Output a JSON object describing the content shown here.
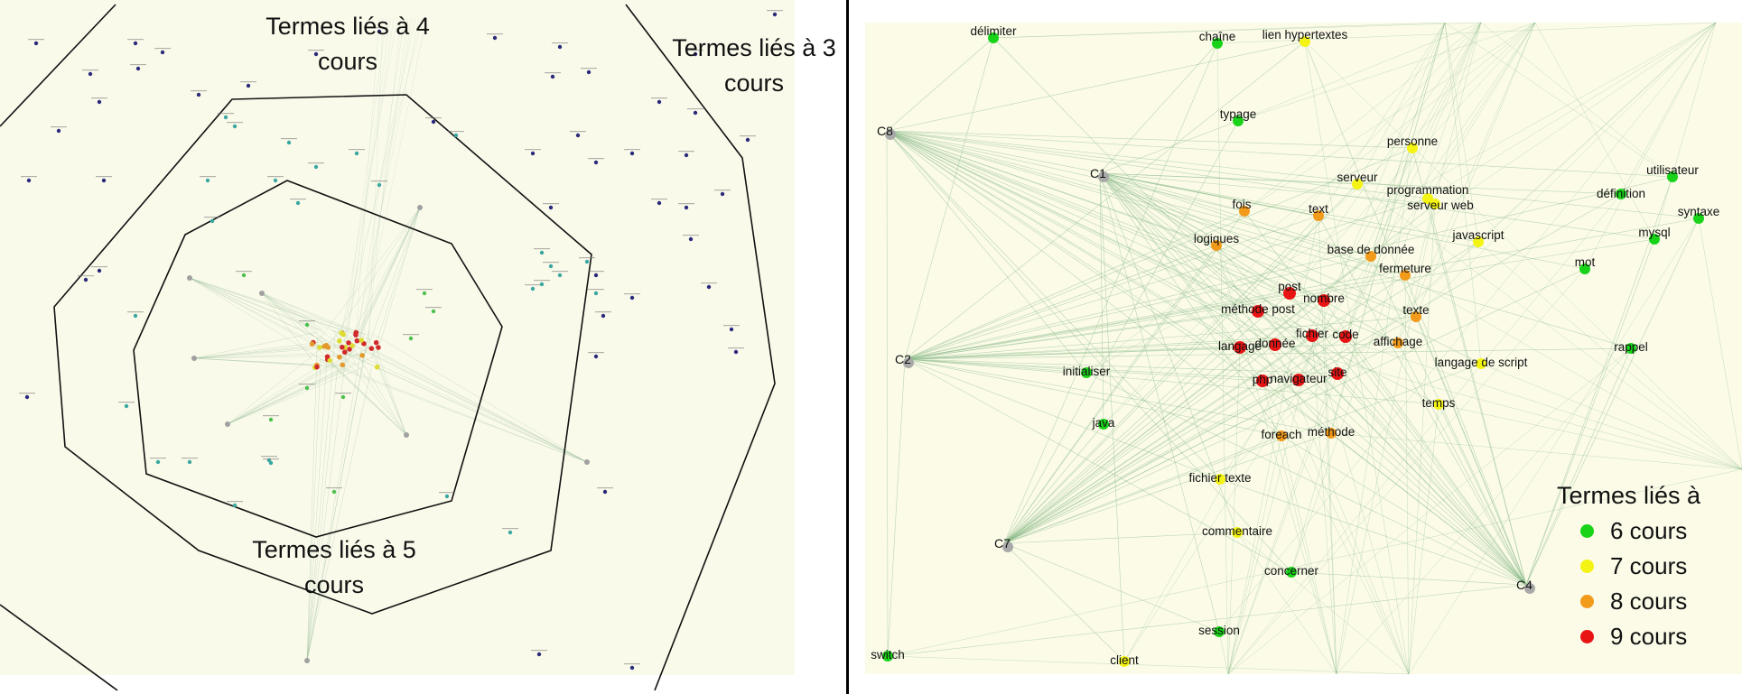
{
  "left_panel": {
    "zone_labels": {
      "four": "Termes liés à 4 cours",
      "three": "Termes liés à 3 cours",
      "five": "Termes liés à 5 cours"
    },
    "background": "#fafaeb",
    "node_colors": {
      "navy": "#2a2a7a",
      "teal": "#3aa7a0",
      "green": "#4cc04c",
      "yellow": "#dddd33",
      "orange": "#e39a2a",
      "red": "#d22a2a",
      "gray": "#a0a0a0"
    }
  },
  "right_panel": {
    "background": "#fbfbe8",
    "edge_color": "#86b886",
    "courses": [
      {
        "id": "C8",
        "label": "C8"
      },
      {
        "id": "C1",
        "label": "C1"
      },
      {
        "id": "C2",
        "label": "C2"
      },
      {
        "id": "C7",
        "label": "C7"
      },
      {
        "id": "C4",
        "label": "C4"
      }
    ],
    "terms": [
      {
        "label": "délimiter",
        "level": 6
      },
      {
        "label": "chaîne",
        "level": 6
      },
      {
        "label": "lien hypertextes",
        "level": 7
      },
      {
        "label": "typage",
        "level": 6
      },
      {
        "label": "personne",
        "level": 7
      },
      {
        "label": "serveur",
        "level": 7
      },
      {
        "label": "programmation",
        "level": 7
      },
      {
        "label": "serveur web",
        "level": 7
      },
      {
        "label": "utilisateur",
        "level": 6
      },
      {
        "label": "définition",
        "level": 6
      },
      {
        "label": "syntaxe",
        "level": 6
      },
      {
        "label": "fois",
        "level": 8
      },
      {
        "label": "text",
        "level": 8
      },
      {
        "label": "javascript",
        "level": 7
      },
      {
        "label": "mysql",
        "level": 6
      },
      {
        "label": "logiques",
        "level": 8
      },
      {
        "label": "base de donnée",
        "level": 8
      },
      {
        "label": "mot",
        "level": 6
      },
      {
        "label": "fermeture",
        "level": 8
      },
      {
        "label": "post",
        "level": 9
      },
      {
        "label": "nombre",
        "level": 9
      },
      {
        "label": "méthode post",
        "level": 9
      },
      {
        "label": "texte",
        "level": 8
      },
      {
        "label": "fichier",
        "level": 9
      },
      {
        "label": "code",
        "level": 9
      },
      {
        "label": "langage",
        "level": 9
      },
      {
        "label": "donnée",
        "level": 9
      },
      {
        "label": "affichage",
        "level": 8
      },
      {
        "label": "rappel",
        "level": 6
      },
      {
        "label": "langage de script",
        "level": 7
      },
      {
        "label": "initialiser",
        "level": 6
      },
      {
        "label": "php",
        "level": 9
      },
      {
        "label": "navigateur",
        "level": 9
      },
      {
        "label": "site",
        "level": 9
      },
      {
        "label": "temps",
        "level": 7
      },
      {
        "label": "java",
        "level": 6
      },
      {
        "label": "foreach",
        "level": 8
      },
      {
        "label": "méthode",
        "level": 8
      },
      {
        "label": "fichier texte",
        "level": 7
      },
      {
        "label": "commentaire",
        "level": 7
      },
      {
        "label": "concerner",
        "level": 6
      },
      {
        "label": "session",
        "level": 6
      },
      {
        "label": "switch",
        "level": 6
      },
      {
        "label": "client",
        "level": 7
      }
    ]
  },
  "legend": {
    "title": "Termes liés à",
    "items": [
      {
        "label": "6 cours",
        "color": "#19d319"
      },
      {
        "label": "7 cours",
        "color": "#f4f414"
      },
      {
        "label": "8 cours",
        "color": "#f29a1a"
      },
      {
        "label": "9 cours",
        "color": "#e81414"
      }
    ]
  }
}
